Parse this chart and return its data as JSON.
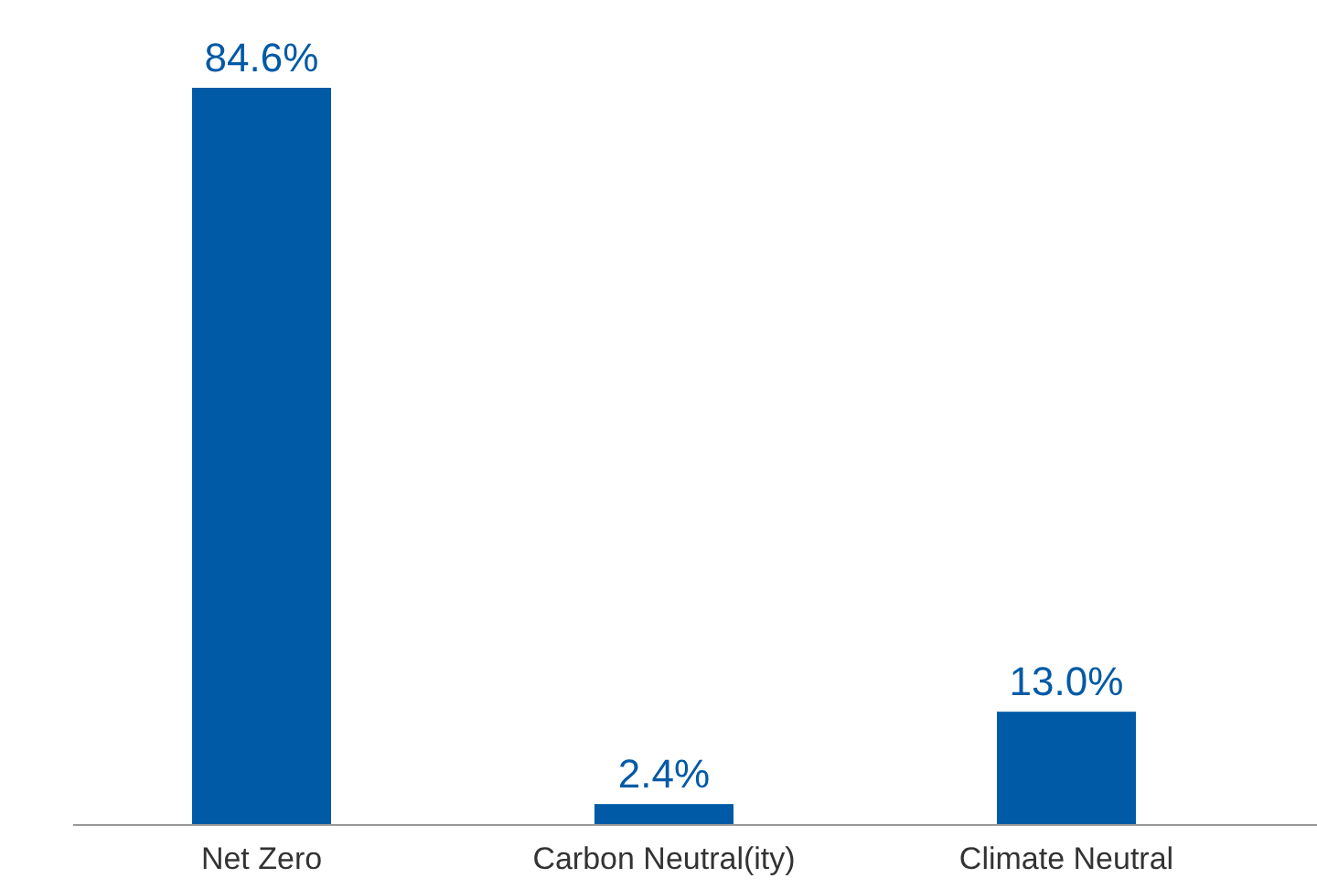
{
  "chart_data": {
    "type": "bar",
    "categories": [
      "Net Zero",
      "Carbon Neutral(ity)",
      "Climate Neutral"
    ],
    "values": [
      84.6,
      2.4,
      13.0
    ],
    "value_labels": [
      "84.6%",
      "2.4%",
      "13.0%"
    ],
    "color": "#005aa5"
  }
}
